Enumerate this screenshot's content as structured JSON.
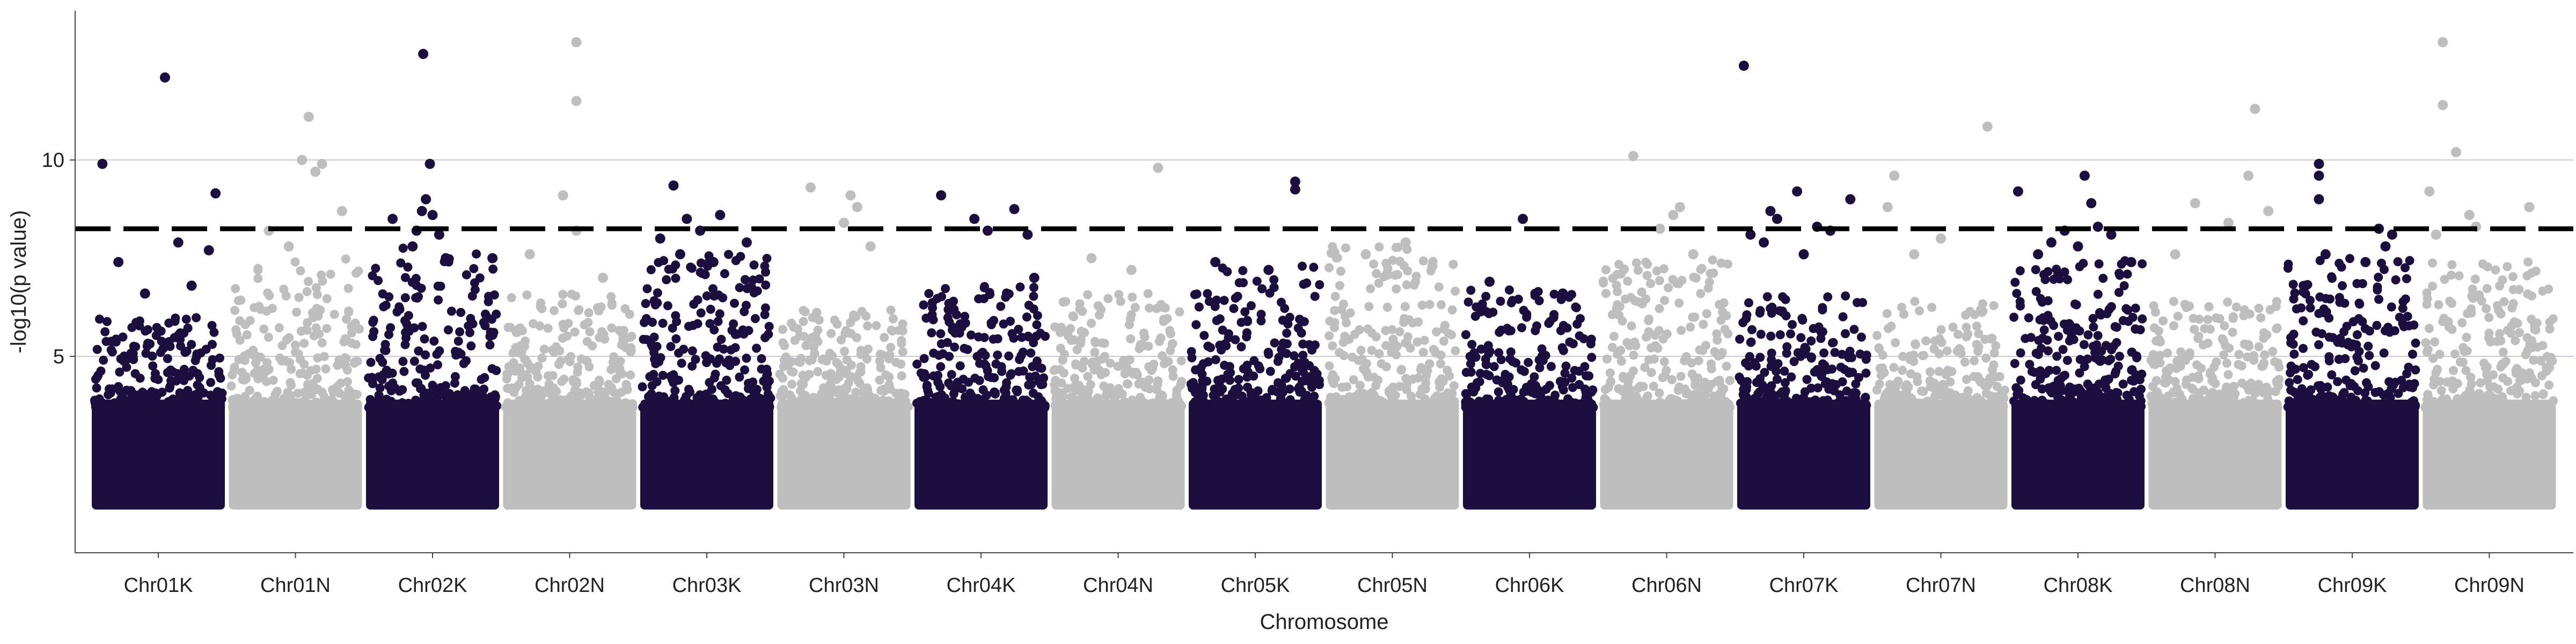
{
  "chart_data": {
    "type": "scatter",
    "title": "",
    "xlabel": "Chromosome",
    "ylabel": "-log10(p value)",
    "ylim": [
      0,
      13.8
    ],
    "yticks": [
      5,
      10
    ],
    "grid": "horizontal",
    "legend": "none",
    "threshold": 8.25,
    "colors": {
      "odd": "#1c0f40",
      "even": "#bebebe",
      "threshold": "#000000",
      "grid": "#c8c8d2",
      "axis": "#444444"
    },
    "categories": [
      "Chr01K",
      "Chr01N",
      "Chr02K",
      "Chr02N",
      "Chr03K",
      "Chr03N",
      "Chr04K",
      "Chr04N",
      "Chr05K",
      "Chr05N",
      "Chr06K",
      "Chr06N",
      "Chr07K",
      "Chr07N",
      "Chr08K",
      "Chr08N",
      "Chr09K",
      "Chr09N"
    ],
    "bulk_top": [
      6.0,
      7.5,
      7.8,
      6.6,
      7.6,
      6.2,
      6.8,
      6.6,
      7.4,
      7.8,
      6.7,
      7.5,
      6.6,
      6.4,
      7.5,
      6.4,
      7.5,
      7.5
    ],
    "series": [
      {
        "category": "Chr01K",
        "points": [
          [
            0.08,
            9.9
          ],
          [
            0.55,
            12.1
          ],
          [
            0.93,
            9.15
          ],
          [
            0.88,
            7.7
          ],
          [
            0.2,
            7.4
          ],
          [
            0.65,
            7.9
          ],
          [
            0.4,
            6.6
          ],
          [
            0.75,
            6.8
          ]
        ]
      },
      {
        "category": "Chr01N",
        "points": [
          [
            0.6,
            11.1
          ],
          [
            0.55,
            10.0
          ],
          [
            0.65,
            9.7
          ],
          [
            0.85,
            8.7
          ],
          [
            0.3,
            8.2
          ],
          [
            0.7,
            9.9
          ],
          [
            0.45,
            7.8
          ]
        ]
      },
      {
        "category": "Chr02K",
        "points": [
          [
            0.43,
            12.7
          ],
          [
            0.48,
            9.9
          ],
          [
            0.2,
            8.5
          ],
          [
            0.45,
            9.0
          ],
          [
            0.5,
            8.6
          ],
          [
            0.38,
            8.2
          ],
          [
            0.55,
            8.1
          ],
          [
            0.35,
            7.8
          ],
          [
            0.6,
            7.5
          ],
          [
            0.95,
            7.5
          ],
          [
            0.42,
            8.7
          ]
        ]
      },
      {
        "category": "Chr02N",
        "points": [
          [
            0.55,
            13.0
          ],
          [
            0.55,
            11.5
          ],
          [
            0.45,
            9.1
          ],
          [
            0.55,
            8.2
          ],
          [
            0.2,
            7.6
          ],
          [
            0.75,
            7.0
          ]
        ]
      },
      {
        "category": "Chr03K",
        "points": [
          [
            0.25,
            9.35
          ],
          [
            0.35,
            8.5
          ],
          [
            0.6,
            8.6
          ],
          [
            0.45,
            8.2
          ],
          [
            0.15,
            8.0
          ],
          [
            0.8,
            7.9
          ],
          [
            0.3,
            7.6
          ],
          [
            0.55,
            7.4
          ]
        ]
      },
      {
        "category": "Chr03N",
        "points": [
          [
            0.25,
            9.3
          ],
          [
            0.55,
            9.1
          ],
          [
            0.6,
            8.8
          ],
          [
            0.5,
            8.4
          ],
          [
            0.7,
            7.8
          ]
        ]
      },
      {
        "category": "Chr04K",
        "points": [
          [
            0.2,
            9.1
          ],
          [
            0.45,
            8.5
          ],
          [
            0.75,
            8.75
          ],
          [
            0.55,
            8.2
          ],
          [
            0.85,
            8.1
          ],
          [
            0.9,
            7.0
          ]
        ]
      },
      {
        "category": "Chr04N",
        "points": [
          [
            0.8,
            9.8
          ],
          [
            0.3,
            7.5
          ],
          [
            0.6,
            7.2
          ]
        ]
      },
      {
        "category": "Chr05K",
        "points": [
          [
            0.8,
            9.45
          ],
          [
            0.8,
            9.25
          ],
          [
            0.2,
            7.4
          ],
          [
            0.6,
            7.2
          ]
        ]
      },
      {
        "category": "Chr05N",
        "points": [
          [
            0.6,
            7.9
          ],
          [
            0.3,
            7.6
          ],
          [
            0.8,
            7.3
          ]
        ]
      },
      {
        "category": "Chr06K",
        "points": [
          [
            0.45,
            8.5
          ],
          [
            0.2,
            6.9
          ],
          [
            0.75,
            6.6
          ]
        ]
      },
      {
        "category": "Chr06N",
        "points": [
          [
            0.25,
            10.1
          ],
          [
            0.6,
            8.8
          ],
          [
            0.55,
            8.6
          ],
          [
            0.45,
            8.25
          ],
          [
            0.7,
            7.6
          ]
        ]
      },
      {
        "category": "Chr07K",
        "points": [
          [
            0.05,
            12.4
          ],
          [
            0.45,
            9.2
          ],
          [
            0.25,
            8.7
          ],
          [
            0.85,
            9.0
          ],
          [
            0.3,
            8.5
          ],
          [
            0.6,
            8.3
          ],
          [
            0.7,
            8.2
          ],
          [
            0.1,
            8.1
          ],
          [
            0.2,
            7.9
          ],
          [
            0.5,
            7.6
          ]
        ]
      },
      {
        "category": "Chr07N",
        "points": [
          [
            0.85,
            10.85
          ],
          [
            0.15,
            9.6
          ],
          [
            0.1,
            8.8
          ],
          [
            0.5,
            8.0
          ],
          [
            0.3,
            7.6
          ]
        ]
      },
      {
        "category": "Chr08K",
        "points": [
          [
            0.05,
            9.2
          ],
          [
            0.55,
            9.6
          ],
          [
            0.6,
            8.9
          ],
          [
            0.4,
            8.2
          ],
          [
            0.65,
            8.3
          ],
          [
            0.75,
            8.1
          ],
          [
            0.3,
            7.9
          ],
          [
            0.2,
            7.6
          ],
          [
            0.9,
            7.4
          ],
          [
            0.5,
            7.8
          ]
        ]
      },
      {
        "category": "Chr08N",
        "points": [
          [
            0.8,
            11.3
          ],
          [
            0.75,
            9.6
          ],
          [
            0.35,
            8.9
          ],
          [
            0.6,
            8.4
          ],
          [
            0.9,
            8.7
          ],
          [
            0.2,
            7.6
          ]
        ]
      },
      {
        "category": "Chr09K",
        "points": [
          [
            0.25,
            9.9
          ],
          [
            0.25,
            9.6
          ],
          [
            0.25,
            9.0
          ],
          [
            0.7,
            8.25
          ],
          [
            0.8,
            8.1
          ],
          [
            0.75,
            7.8
          ],
          [
            0.3,
            7.6
          ],
          [
            0.6,
            7.4
          ]
        ]
      },
      {
        "category": "Chr09N",
        "points": [
          [
            0.15,
            13.0
          ],
          [
            0.15,
            11.4
          ],
          [
            0.25,
            10.2
          ],
          [
            0.05,
            9.2
          ],
          [
            0.8,
            8.8
          ],
          [
            0.35,
            8.6
          ],
          [
            0.4,
            8.3
          ],
          [
            0.1,
            8.1
          ]
        ]
      }
    ]
  }
}
